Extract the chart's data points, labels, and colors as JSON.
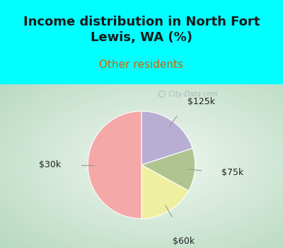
{
  "title": "Income distribution in North Fort\nLewis, WA (%)",
  "subtitle": "Other residents",
  "title_color": "#1a1a1a",
  "subtitle_color": "#cc6600",
  "background_color": "#00ffff",
  "slices": [
    {
      "label": "$125k",
      "value": 20,
      "color": "#b8aed4"
    },
    {
      "label": "$75k",
      "value": 13,
      "color": "#b0c490"
    },
    {
      "label": "$60k",
      "value": 17,
      "color": "#eef0a0"
    },
    {
      "label": "$30k",
      "value": 50,
      "color": "#f4a8a8"
    }
  ],
  "label_color": "#222222",
  "label_fontsize": 9,
  "title_fontsize": 13,
  "subtitle_fontsize": 11,
  "watermark": "  City-Data.com",
  "watermark_color": "#aabbbb",
  "startangle": 90
}
